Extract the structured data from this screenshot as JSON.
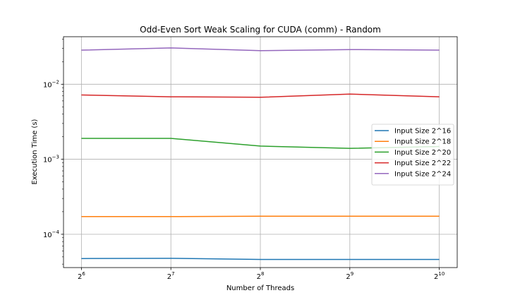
{
  "chart_data": {
    "type": "line",
    "title": "Odd-Even Sort Weak Scaling for CUDA (comm) - Random",
    "xlabel": "Number of Threads",
    "ylabel": "Execution Time (s)",
    "x": [
      64,
      128,
      256,
      512,
      1024
    ],
    "x_tick_bases": [
      "2",
      "2",
      "2",
      "2",
      "2"
    ],
    "x_tick_exponents": [
      "6",
      "7",
      "8",
      "9",
      "10"
    ],
    "y_scale": "log",
    "y_tick_values": [
      0.0001,
      0.001,
      0.01
    ],
    "y_tick_exponents": [
      "−4",
      "−3",
      "−2"
    ],
    "ylim": [
      3.6e-05,
      0.043
    ],
    "grid": true,
    "legend_position": "center-right",
    "series": [
      {
        "name": "Input Size 2^16",
        "color": "#1f77b4",
        "values": [
          4.75e-05,
          4.78e-05,
          4.62e-05,
          4.62e-05,
          4.62e-05
        ]
      },
      {
        "name": "Input Size 2^18",
        "color": "#ff7f0e",
        "values": [
          0.000172,
          0.000172,
          0.000174,
          0.000174,
          0.000174
        ]
      },
      {
        "name": "Input Size 2^20",
        "color": "#2ca02c",
        "values": [
          0.0019,
          0.0019,
          0.0015,
          0.0014,
          0.00148
        ]
      },
      {
        "name": "Input Size 2^22",
        "color": "#d62728",
        "values": [
          0.0072,
          0.0068,
          0.0067,
          0.0074,
          0.0068
        ]
      },
      {
        "name": "Input Size 2^24",
        "color": "#9467bd",
        "values": [
          0.0285,
          0.0305,
          0.028,
          0.029,
          0.0285
        ]
      }
    ]
  }
}
